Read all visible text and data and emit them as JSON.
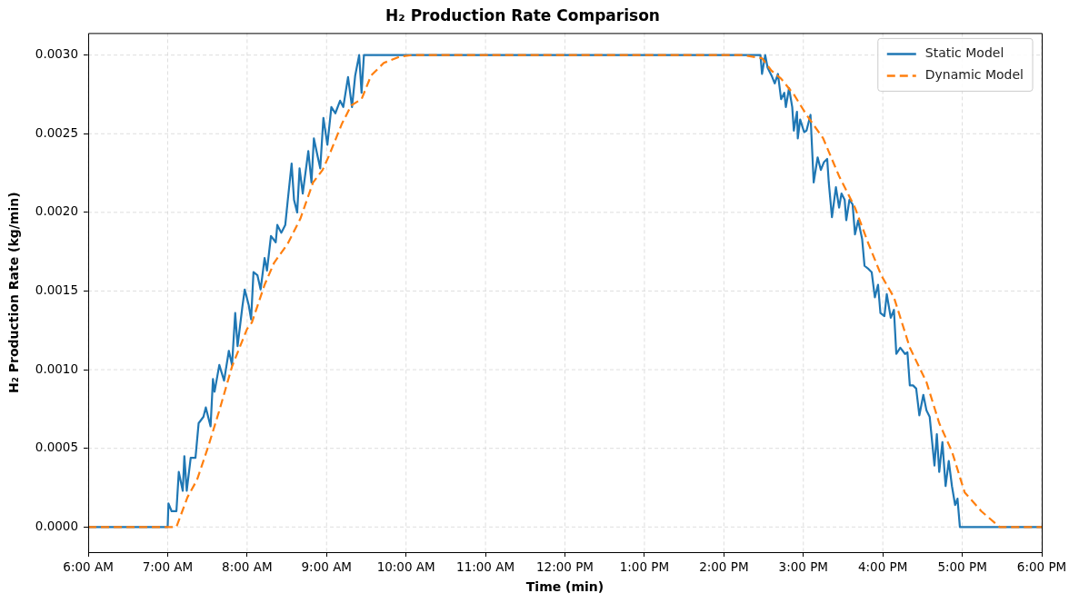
{
  "chart_data": {
    "type": "line",
    "title": "H₂ Production Rate Comparison",
    "xlabel": "Time (min)",
    "ylabel": "H₂ Production Rate (kg/min)",
    "xlim": [
      6,
      18
    ],
    "ylim": [
      -0.00016,
      0.00314
    ],
    "xticks": [
      {
        "value": 6,
        "label": "6:00 AM"
      },
      {
        "value": 7,
        "label": "7:00 AM"
      },
      {
        "value": 8,
        "label": "8:00 AM"
      },
      {
        "value": 9,
        "label": "9:00 AM"
      },
      {
        "value": 10,
        "label": "10:00 AM"
      },
      {
        "value": 11,
        "label": "11:00 AM"
      },
      {
        "value": 12,
        "label": "12:00 PM"
      },
      {
        "value": 13,
        "label": "1:00 PM"
      },
      {
        "value": 14,
        "label": "2:00 PM"
      },
      {
        "value": 15,
        "label": "3:00 PM"
      },
      {
        "value": 16,
        "label": "4:00 PM"
      },
      {
        "value": 17,
        "label": "5:00 PM"
      },
      {
        "value": 18,
        "label": "6:00 PM"
      }
    ],
    "yticks": [
      {
        "value": 0,
        "label": "0.0000"
      },
      {
        "value": 0.0005,
        "label": "0.0005"
      },
      {
        "value": 0.001,
        "label": "0.0010"
      },
      {
        "value": 0.0015,
        "label": "0.0015"
      },
      {
        "value": 0.002,
        "label": "0.0020"
      },
      {
        "value": 0.0025,
        "label": "0.0025"
      },
      {
        "value": 0.003,
        "label": "0.0030"
      }
    ],
    "grid": true,
    "legend": "top right",
    "marker": "none",
    "series": [
      {
        "name": "Static Model",
        "color": "#1f77b4",
        "line_style": "solid",
        "x": [
          6,
          7.0,
          7.01,
          7.05,
          7.11,
          7.14,
          7.19,
          7.21,
          7.24,
          7.29,
          7.35,
          7.39,
          7.45,
          7.48,
          7.54,
          7.57,
          7.59,
          7.65,
          7.71,
          7.77,
          7.81,
          7.85,
          7.88,
          7.94,
          7.97,
          8.02,
          8.05,
          8.08,
          8.13,
          8.17,
          8.22,
          8.25,
          8.3,
          8.36,
          8.38,
          8.43,
          8.48,
          8.51,
          8.56,
          8.59,
          8.63,
          8.66,
          8.7,
          8.77,
          8.81,
          8.84,
          8.89,
          8.92,
          8.96,
          9.01,
          9.06,
          9.11,
          9.17,
          9.21,
          9.27,
          9.32,
          9.36,
          9.41,
          9.44,
          9.47,
          9.52,
          14.46,
          14.48,
          14.52,
          14.55,
          14.6,
          14.64,
          14.68,
          14.72,
          14.76,
          14.78,
          14.82,
          14.86,
          14.88,
          14.92,
          14.93,
          14.96,
          15.01,
          15.04,
          15.09,
          15.13,
          15.18,
          15.22,
          15.26,
          15.3,
          15.32,
          15.36,
          15.41,
          15.45,
          15.48,
          15.52,
          15.54,
          15.58,
          15.62,
          15.65,
          15.69,
          15.74,
          15.77,
          15.82,
          15.86,
          15.9,
          15.94,
          15.97,
          16.02,
          16.05,
          16.1,
          16.14,
          16.17,
          16.22,
          16.28,
          16.31,
          16.34,
          16.38,
          16.42,
          16.46,
          16.51,
          16.55,
          16.59,
          16.65,
          16.68,
          16.71,
          16.75,
          16.79,
          16.83,
          16.87,
          16.91,
          16.94,
          16.97,
          17.0,
          18
        ],
        "values": [
          0,
          0,
          0.00015,
          0.0001,
          0.0001,
          0.00035,
          0.00023,
          0.00045,
          0.00023,
          0.00044,
          0.00044,
          0.00066,
          0.0007,
          0.00076,
          0.00064,
          0.00094,
          0.00086,
          0.00103,
          0.00093,
          0.00112,
          0.00103,
          0.00136,
          0.00115,
          0.0014,
          0.00151,
          0.00141,
          0.00132,
          0.00162,
          0.0016,
          0.00151,
          0.00171,
          0.00163,
          0.00185,
          0.00181,
          0.00192,
          0.00187,
          0.00192,
          0.00207,
          0.00231,
          0.00208,
          0.002,
          0.00228,
          0.00212,
          0.00239,
          0.00219,
          0.00247,
          0.00235,
          0.00228,
          0.0026,
          0.00243,
          0.00267,
          0.00263,
          0.00271,
          0.00267,
          0.00286,
          0.00267,
          0.00287,
          0.003,
          0.00276,
          0.003,
          0.003,
          0.003,
          0.00288,
          0.003,
          0.00292,
          0.00287,
          0.00282,
          0.00288,
          0.00272,
          0.00276,
          0.00267,
          0.00279,
          0.00267,
          0.00252,
          0.00264,
          0.00247,
          0.00259,
          0.00251,
          0.00252,
          0.00262,
          0.00219,
          0.00235,
          0.00227,
          0.00232,
          0.00234,
          0.00219,
          0.00197,
          0.00216,
          0.00203,
          0.00212,
          0.00208,
          0.00195,
          0.00208,
          0.00205,
          0.00186,
          0.00195,
          0.00183,
          0.00166,
          0.00164,
          0.00162,
          0.00146,
          0.00154,
          0.00136,
          0.00134,
          0.00148,
          0.00133,
          0.00138,
          0.0011,
          0.00114,
          0.0011,
          0.00111,
          0.0009,
          0.0009,
          0.00088,
          0.00071,
          0.00084,
          0.00074,
          0.0007,
          0.00039,
          0.00059,
          0.00035,
          0.00054,
          0.00026,
          0.00042,
          0.00026,
          0.00014,
          0.00018,
          0,
          0,
          0
        ]
      },
      {
        "name": "Dynamic Model",
        "color": "#ff7f0e",
        "line_style": "dashed",
        "x": [
          6,
          7.0,
          7.11,
          7.25,
          7.37,
          7.51,
          7.65,
          7.81,
          8.0,
          8.06,
          8.22,
          8.34,
          8.51,
          8.67,
          8.83,
          8.95,
          9.03,
          9.19,
          9.31,
          9.44,
          9.56,
          9.72,
          9.92,
          10.08,
          14.24,
          14.48,
          14.6,
          14.72,
          14.88,
          15.04,
          15.25,
          15.45,
          15.65,
          15.82,
          15.98,
          16.14,
          16.34,
          16.55,
          16.71,
          16.87,
          17.03,
          17.24,
          17.47,
          18
        ],
        "values": [
          0,
          0,
          0,
          0.00019,
          0.0003,
          0.00051,
          0.00074,
          0.00102,
          0.00126,
          0.0013,
          0.00154,
          0.00168,
          0.0018,
          0.00196,
          0.00219,
          0.00227,
          0.00236,
          0.00256,
          0.00268,
          0.00272,
          0.00287,
          0.00295,
          0.00299,
          0.003,
          0.003,
          0.00298,
          0.0029,
          0.00285,
          0.00275,
          0.00262,
          0.00247,
          0.00223,
          0.00203,
          0.0018,
          0.0016,
          0.00146,
          0.00114,
          0.00092,
          0.00066,
          0.00048,
          0.00022,
          0.0001,
          0,
          0
        ]
      }
    ]
  }
}
